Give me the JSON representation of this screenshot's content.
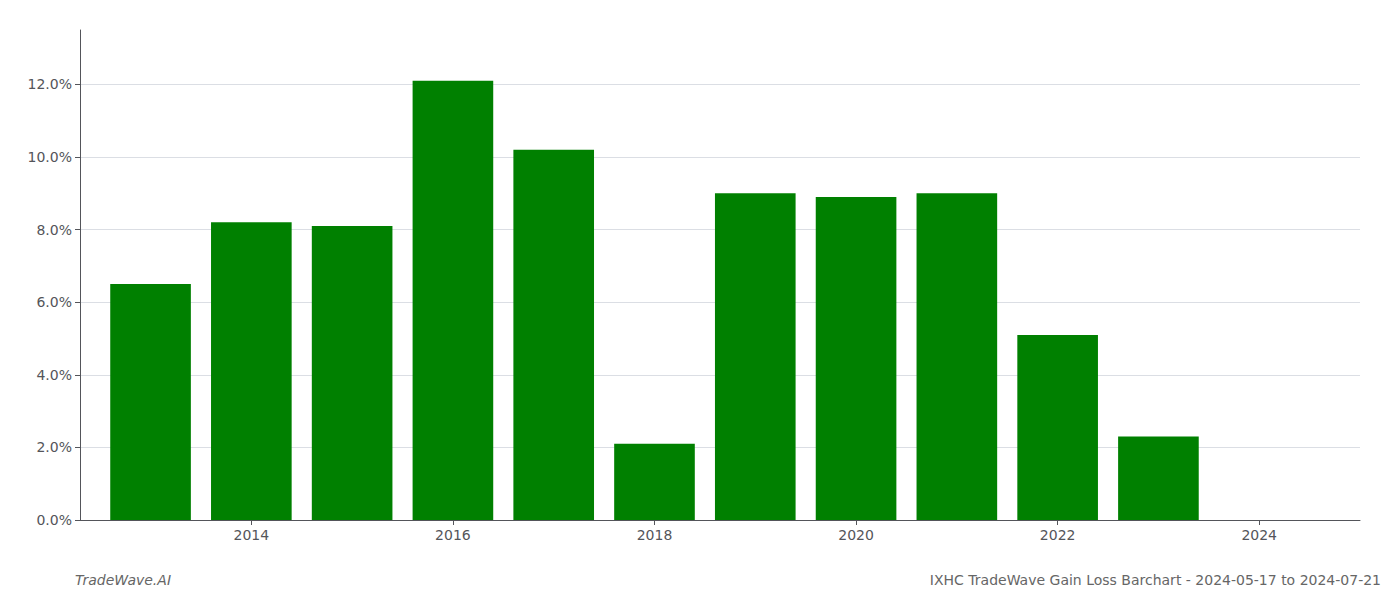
{
  "chart_data": {
    "type": "bar",
    "title": "IXHC TradeWave Gain Loss Barchart - 2024-05-17 to 2024-07-21",
    "annotations": [
      "TradeWave.AI"
    ],
    "x": [
      2013,
      2014,
      2015,
      2016,
      2017,
      2018,
      2019,
      2020,
      2021,
      2022,
      2023
    ],
    "values": [
      0.065,
      0.082,
      0.081,
      0.121,
      0.102,
      0.021,
      0.09,
      0.089,
      0.09,
      0.051,
      0.023
    ],
    "color": "#008000",
    "xlim": [
      2012.3,
      2025.0
    ],
    "xticks": [
      2014,
      2016,
      2018,
      2020,
      2022,
      2024
    ],
    "ylim": [
      0,
      0.135
    ],
    "yticks": [
      {
        "value": 0.0,
        "label": "0.0%"
      },
      {
        "value": 0.02,
        "label": "2.0%"
      },
      {
        "value": 0.04,
        "label": "4.0%"
      },
      {
        "value": 0.06,
        "label": "6.0%"
      },
      {
        "value": 0.08,
        "label": "8.0%"
      },
      {
        "value": 0.1,
        "label": "10.0%"
      },
      {
        "value": 0.12,
        "label": "12.0%"
      }
    ],
    "grid": true
  }
}
